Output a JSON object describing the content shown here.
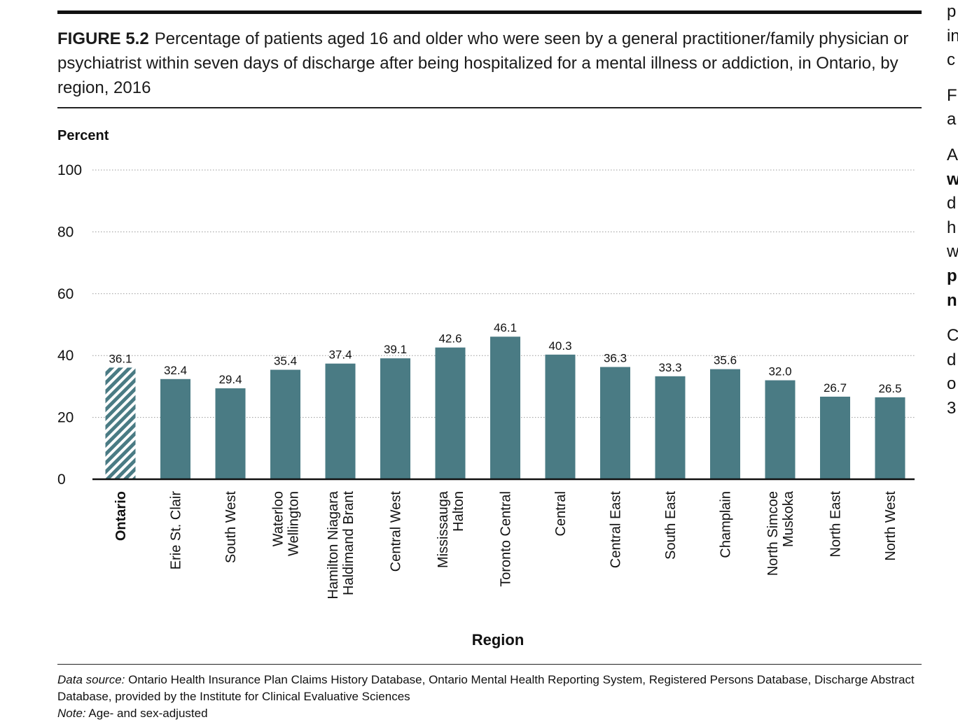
{
  "figure": {
    "label": "FIGURE 5.2",
    "title": "Percentage of patients aged 16 and older who were seen by a general practitioner/family physician or psychiatrist within seven days of discharge after being hospitalized for a mental illness or addiction, in Ontario, by region, 2016"
  },
  "chart_data": {
    "type": "bar",
    "ylabel": "Percent",
    "xlabel": "Region",
    "ylim": [
      0,
      100
    ],
    "yticks": [
      "0",
      "20",
      "40",
      "60",
      "80",
      "100"
    ],
    "grid": "horizontal dotted",
    "categories": [
      [
        "Ontario"
      ],
      [
        "Erie St. Clair"
      ],
      [
        "South West"
      ],
      [
        "Waterloo",
        "Wellington"
      ],
      [
        "Hamilton Niagara",
        "Haldimand Brant"
      ],
      [
        "Central West"
      ],
      [
        "Mississauga",
        "Halton"
      ],
      [
        "Toronto Central"
      ],
      [
        "Central"
      ],
      [
        "Central East"
      ],
      [
        "South East"
      ],
      [
        "Champlain"
      ],
      [
        "North Simcoe",
        "Muskoka"
      ],
      [
        "North East"
      ],
      [
        "North West"
      ]
    ],
    "values": [
      36.1,
      32.4,
      29.4,
      35.4,
      37.4,
      39.1,
      42.6,
      46.1,
      40.3,
      36.3,
      33.3,
      35.6,
      32.0,
      26.7,
      26.5
    ],
    "value_labels": [
      "36.1",
      "32.4",
      "29.4",
      "35.4",
      "37.4",
      "39.1",
      "42.6",
      "46.1",
      "40.3",
      "36.3",
      "33.3",
      "35.6",
      "32.0",
      "26.7",
      "26.5"
    ],
    "highlight_index": 0,
    "colors": {
      "bar": "#4a7b84",
      "highlight": "#4a7b84",
      "axis": "#111111",
      "grid": "#9a9a9a"
    }
  },
  "footer": {
    "source_label": "Data source:",
    "source_text": " Ontario Health Insurance Plan Claims History Database, Ontario Mental Health Reporting System, Registered Persons Database, Discharge Abstract Database, provided by the Institute for Clinical Evaluative Sciences",
    "note_label": "Note:",
    "note_text": " Age- and sex-adjusted"
  },
  "side_column": {
    "lines": [
      "p",
      "in",
      "c",
      "",
      "F",
      "a",
      "",
      "A",
      "w",
      "d",
      "h",
      "w",
      "p",
      "n",
      "",
      "C",
      "d",
      "o",
      "3"
    ]
  }
}
